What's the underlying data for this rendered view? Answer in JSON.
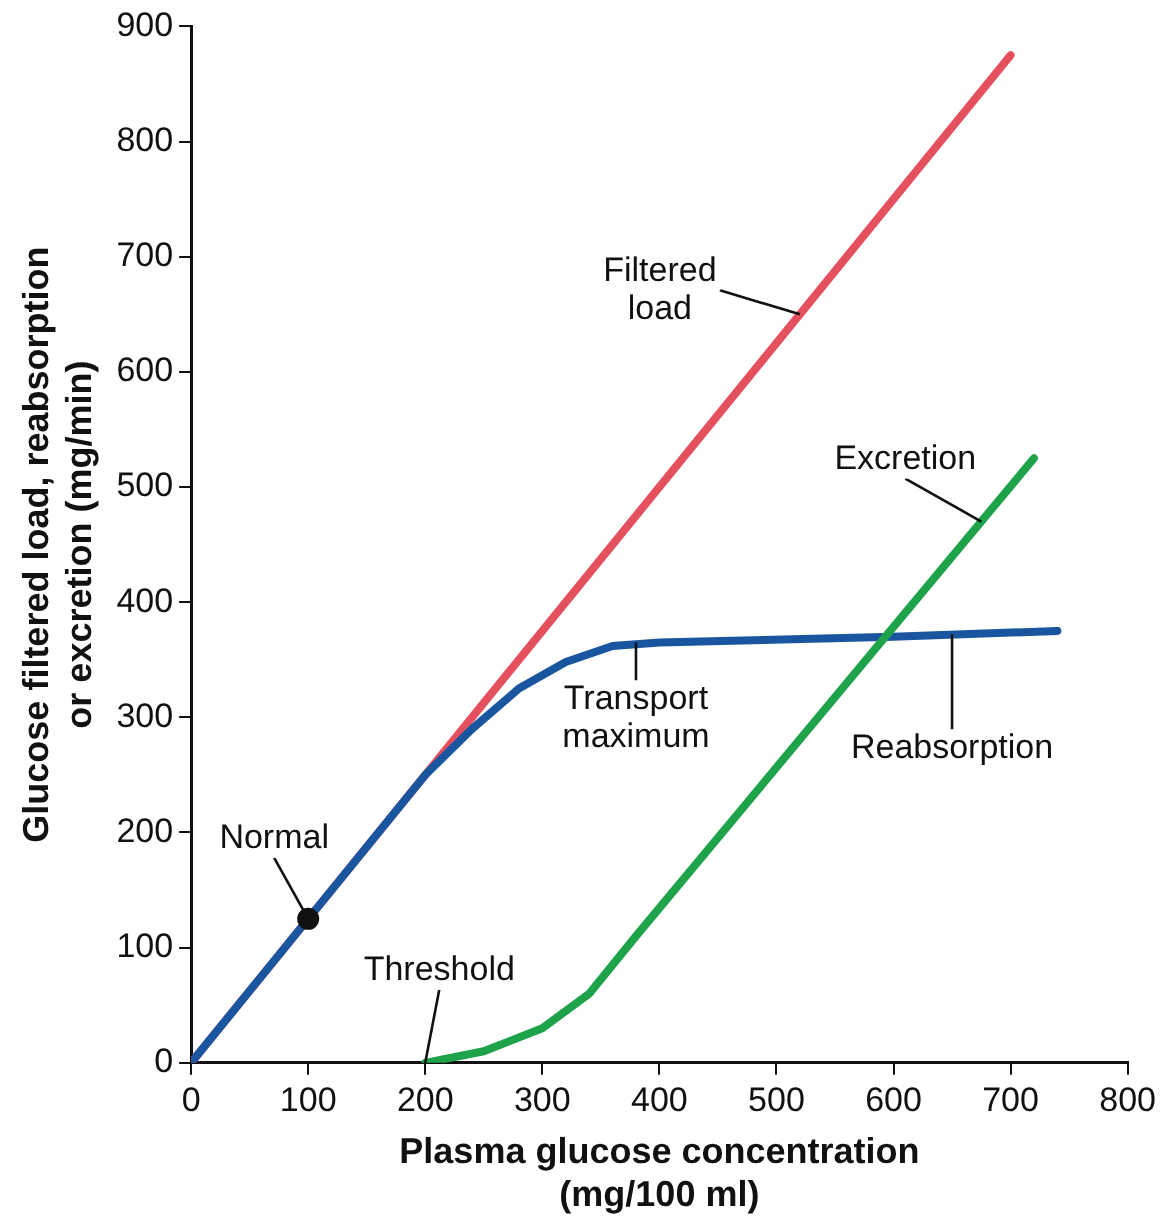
{
  "chart_data": {
    "type": "line",
    "xlabel": "Plasma glucose concentration\n(mg/100 ml)",
    "ylabel": "Glucose filtered load, reabsorption\nor excretion (mg/min)",
    "xlim": [
      0,
      800
    ],
    "ylim": [
      0,
      900
    ],
    "xticks": [
      0,
      100,
      200,
      300,
      400,
      500,
      600,
      700,
      800
    ],
    "yticks": [
      0,
      100,
      200,
      300,
      400,
      500,
      600,
      700,
      800,
      900
    ],
    "grid": false,
    "legend": false,
    "marker": "none",
    "line_style": "solid",
    "series": [
      {
        "color": "#e4505e",
        "x": [
          0,
          700
        ],
        "values": [
          0,
          875
        ]
      },
      {
        "color": "#1a56a0",
        "x": [
          0,
          200,
          240,
          280,
          320,
          360,
          400,
          600,
          740
        ],
        "values": [
          0,
          250,
          290,
          325,
          348,
          362,
          365,
          370,
          375
        ]
      },
      {
        "color": "#1fa34a",
        "x": [
          200,
          250,
          300,
          340,
          380,
          720
        ],
        "values": [
          0,
          10,
          30,
          60,
          110,
          525
        ]
      },
      {
        "type": "scatter",
        "marker": "circle",
        "color": "#111111",
        "x": [
          100
        ],
        "values": [
          125
        ]
      }
    ],
    "annotations": [
      {
        "text": "Filtered\nload",
        "x": 520,
        "y": 650
      },
      {
        "text": "Excretion",
        "x": 675,
        "y": 470
      },
      {
        "text": "Transport\nmaximum",
        "x": 380,
        "y": 365
      },
      {
        "text": "Reabsorption",
        "x": 650,
        "y": 372
      },
      {
        "text": "Normal",
        "x": 100,
        "y": 125
      },
      {
        "text": "Threshold",
        "x": 200,
        "y": 0
      }
    ]
  }
}
